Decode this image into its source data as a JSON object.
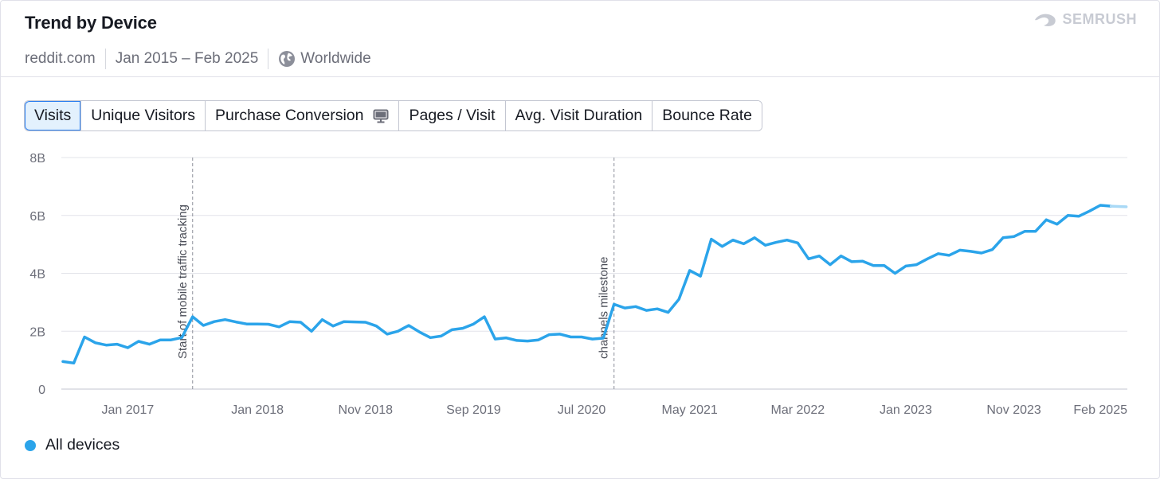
{
  "header": {
    "title": "Trend by Device",
    "domain": "reddit.com",
    "date_range": "Jan 2015 – Feb 2025",
    "region": "Worldwide",
    "brand": "SEMRUSH"
  },
  "tabs": [
    {
      "label": "Visits",
      "active": true
    },
    {
      "label": "Unique Visitors",
      "active": false
    },
    {
      "label": "Purchase Conversion",
      "active": false,
      "icon": "monitor-icon"
    },
    {
      "label": "Pages / Visit",
      "active": false
    },
    {
      "label": "Avg. Visit Duration",
      "active": false
    },
    {
      "label": "Bounce Rate",
      "active": false
    }
  ],
  "legend": {
    "label": "All devices",
    "color": "#2ba4ea"
  },
  "chart_data": {
    "type": "line",
    "title": "",
    "xlabel": "",
    "ylabel": "",
    "ylim": [
      0,
      8
    ],
    "yunit": "B",
    "y_ticks": [
      "0",
      "2B",
      "4B",
      "6B",
      "8B"
    ],
    "x_tick_labels": [
      "Jan 2017",
      "Jan 2018",
      "Nov 2018",
      "Sep 2019",
      "Jul 2020",
      "May 2021",
      "Mar 2022",
      "Jan 2023",
      "Nov 2023",
      "Feb 2025"
    ],
    "grid": true,
    "legend_position": "bottom-left",
    "series": [
      {
        "name": "All devices",
        "color": "#2ba4ea",
        "points": [
          [
            "Jul 2016",
            0.95
          ],
          [
            "Aug 2016",
            0.9
          ],
          [
            "Sep 2016",
            1.8
          ],
          [
            "Oct 2016",
            1.6
          ],
          [
            "Nov 2016",
            1.52
          ],
          [
            "Dec 2016",
            1.55
          ],
          [
            "Jan 2017",
            1.43
          ],
          [
            "Feb 2017",
            1.65
          ],
          [
            "Mar 2017",
            1.55
          ],
          [
            "Apr 2017",
            1.7
          ],
          [
            "May 2017",
            1.7
          ],
          [
            "Jun 2017",
            1.78
          ],
          [
            "Jul 2017",
            2.5
          ],
          [
            "Aug 2017",
            2.2
          ],
          [
            "Sep 2017",
            2.33
          ],
          [
            "Oct 2017",
            2.4
          ],
          [
            "Nov 2017",
            2.32
          ],
          [
            "Dec 2017",
            2.25
          ],
          [
            "Jan 2018",
            2.25
          ],
          [
            "Feb 2018",
            2.24
          ],
          [
            "Mar 2018",
            2.15
          ],
          [
            "Apr 2018",
            2.33
          ],
          [
            "May 2018",
            2.31
          ],
          [
            "Jun 2018",
            2.0
          ],
          [
            "Jul 2018",
            2.4
          ],
          [
            "Aug 2018",
            2.18
          ],
          [
            "Sep 2018",
            2.33
          ],
          [
            "Oct 2018",
            2.32
          ],
          [
            "Nov 2018",
            2.31
          ],
          [
            "Dec 2018",
            2.18
          ],
          [
            "Jan 2019",
            1.9
          ],
          [
            "Feb 2019",
            2.0
          ],
          [
            "Mar 2019",
            2.2
          ],
          [
            "Apr 2019",
            1.97
          ],
          [
            "May 2019",
            1.78
          ],
          [
            "Jun 2019",
            1.83
          ],
          [
            "Jul 2019",
            2.05
          ],
          [
            "Aug 2019",
            2.1
          ],
          [
            "Sep 2019",
            2.25
          ],
          [
            "Oct 2019",
            2.5
          ],
          [
            "Nov 2019",
            1.73
          ],
          [
            "Dec 2019",
            1.77
          ],
          [
            "Jan 2020",
            1.68
          ],
          [
            "Feb 2020",
            1.66
          ],
          [
            "Mar 2020",
            1.7
          ],
          [
            "Apr 2020",
            1.88
          ],
          [
            "May 2020",
            1.9
          ],
          [
            "Jun 2020",
            1.8
          ],
          [
            "Jul 2020",
            1.8
          ],
          [
            "Aug 2020",
            1.73
          ],
          [
            "Sep 2020",
            1.76
          ],
          [
            "Oct 2020",
            2.93
          ],
          [
            "Nov 2020",
            2.8
          ],
          [
            "Dec 2020",
            2.85
          ],
          [
            "Jan 2021",
            2.72
          ],
          [
            "Feb 2021",
            2.77
          ],
          [
            "Mar 2021",
            2.65
          ],
          [
            "Apr 2021",
            3.1
          ],
          [
            "May 2021",
            4.1
          ],
          [
            "Jun 2021",
            3.9
          ],
          [
            "Jul 2021",
            5.18
          ],
          [
            "Aug 2021",
            4.93
          ],
          [
            "Sep 2021",
            5.15
          ],
          [
            "Oct 2021",
            5.02
          ],
          [
            "Nov 2021",
            5.23
          ],
          [
            "Dec 2021",
            4.97
          ],
          [
            "Jan 2022",
            5.07
          ],
          [
            "Feb 2022",
            5.15
          ],
          [
            "Mar 2022",
            5.05
          ],
          [
            "Apr 2022",
            4.5
          ],
          [
            "May 2022",
            4.6
          ],
          [
            "Jun 2022",
            4.3
          ],
          [
            "Jul 2022",
            4.6
          ],
          [
            "Aug 2022",
            4.4
          ],
          [
            "Sep 2022",
            4.42
          ],
          [
            "Oct 2022",
            4.27
          ],
          [
            "Nov 2022",
            4.27
          ],
          [
            "Dec 2022",
            4.0
          ],
          [
            "Jan 2023",
            4.25
          ],
          [
            "Feb 2023",
            4.3
          ],
          [
            "Mar 2023",
            4.5
          ],
          [
            "Apr 2023",
            4.68
          ],
          [
            "May 2023",
            4.62
          ],
          [
            "Jun 2023",
            4.8
          ],
          [
            "Jul 2023",
            4.76
          ],
          [
            "Aug 2023",
            4.7
          ],
          [
            "Sep 2023",
            4.82
          ],
          [
            "Oct 2023",
            5.23
          ],
          [
            "Nov 2023",
            5.27
          ],
          [
            "Dec 2023",
            5.45
          ],
          [
            "Jan 2024",
            5.45
          ],
          [
            "Feb 2024",
            5.85
          ],
          [
            "Mar 2024",
            5.7
          ],
          [
            "Apr 2024",
            6.0
          ],
          [
            "May 2024",
            5.97
          ],
          [
            "Jun 2024",
            6.15
          ],
          [
            "Jul 2024",
            6.35
          ],
          [
            "Aug 2024",
            6.32
          ]
        ]
      }
    ],
    "annotations": [
      {
        "label": "Start of mobile traffic tracking",
        "at": "Jul 2017"
      },
      {
        "label": "channels milestone",
        "at": "Oct 2020"
      }
    ]
  }
}
